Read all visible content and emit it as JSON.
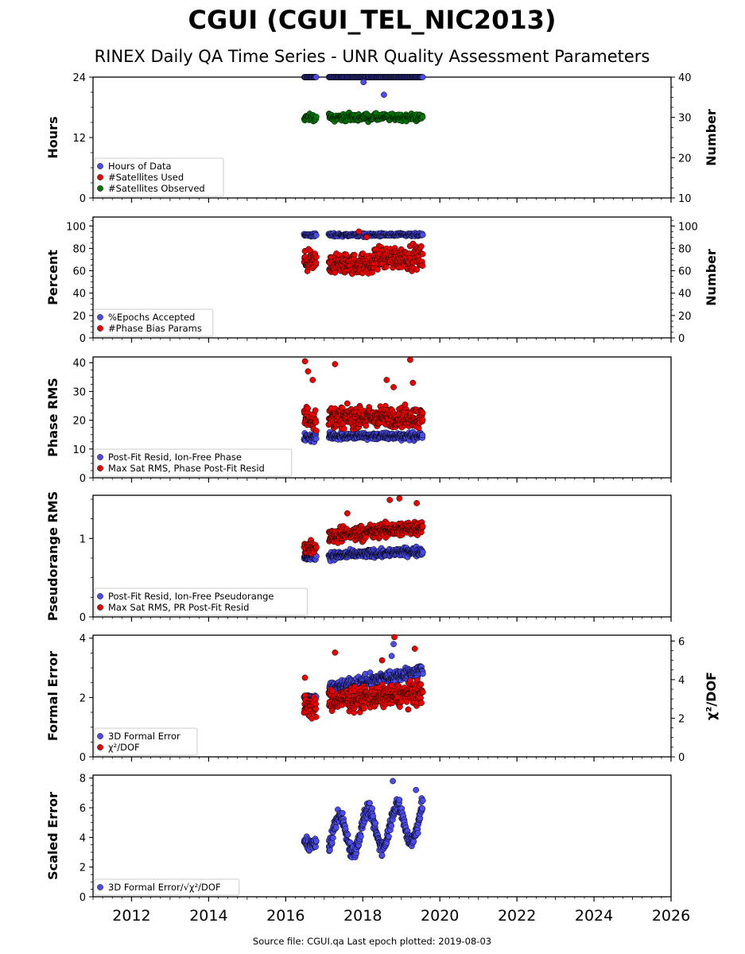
{
  "header": {
    "title": "CGUI (CGUI_TEL_NIC2013)",
    "subtitle": "RINEX Daily QA Time Series - UNR Quality Assessment Parameters"
  },
  "footer": {
    "text": "Source file: CGUI.qa Last epoch plotted: 2019-08-03"
  },
  "colors": {
    "blue": "#4b4bef",
    "red": "#ee0000",
    "green": "#007a00",
    "edge": "#000000"
  },
  "chart_data": [
    {
      "type": "scatter",
      "ylabel": "Hours",
      "ylim": [
        0,
        24
      ],
      "yticks": [
        0,
        12,
        24
      ],
      "right_axis": {
        "label": "Number",
        "ylim": [
          10,
          40
        ],
        "ticks": [
          10,
          20,
          30,
          40
        ]
      },
      "legend": {
        "placement": "lower-left"
      },
      "series": [
        {
          "name": "Hours of Data",
          "color": "blue",
          "axis": "left",
          "segments": [
            {
              "x": [
                2016.48,
                2016.8
              ],
              "base": 24.0,
              "noise": 0.0,
              "step": 0.014
            },
            {
              "x": [
                2017.12,
                2019.56
              ],
              "base": 24.0,
              "noise": 0.0,
              "step": 0.014
            }
          ],
          "outliers": [
            [
              2018.02,
              23.0
            ],
            [
              2018.55,
              20.5
            ]
          ]
        },
        {
          "name": "#Satellites Used",
          "color": "red",
          "axis": "right",
          "segments": []
        },
        {
          "name": "#Satellites Observed",
          "color": "green",
          "axis": "right",
          "segments": [
            {
              "x": [
                2016.48,
                2016.8
              ],
              "base": 30.0,
              "noise": 0.8,
              "step": 0.012
            },
            {
              "x": [
                2017.12,
                2019.56
              ],
              "base": 30.0,
              "noise": 0.9,
              "step": 0.012
            }
          ]
        }
      ]
    },
    {
      "type": "scatter",
      "ylabel": "Percent",
      "ylim": [
        0,
        108
      ],
      "yticks": [
        0,
        20,
        40,
        60,
        80,
        100
      ],
      "right_axis": {
        "label": "Number",
        "ylim": [
          0,
          108
        ],
        "ticks": [
          0,
          20,
          40,
          60,
          80,
          100
        ]
      },
      "legend": {
        "placement": "lower-left"
      },
      "series": [
        {
          "name": "%Epochs Accepted",
          "color": "blue",
          "axis": "left",
          "segments": [
            {
              "x": [
                2016.48,
                2016.8
              ],
              "base": 92,
              "noise": 1.5,
              "step": 0.012
            },
            {
              "x": [
                2017.12,
                2019.56
              ],
              "base": 92,
              "noise": 1.5,
              "step": 0.012
            }
          ]
        },
        {
          "name": "#Phase Bias Params",
          "color": "red",
          "axis": "right",
          "segments": [
            {
              "x": [
                2016.48,
                2016.8
              ],
              "base": 68,
              "noise": 9,
              "step": 0.008
            },
            {
              "x": [
                2017.12,
                2018.3
              ],
              "base": 66,
              "noise": 9,
              "step": 0.008
            },
            {
              "x": [
                2018.3,
                2019.56
              ],
              "base": 72,
              "noise": 10,
              "step": 0.008
            }
          ],
          "outliers": [
            [
              2017.9,
              95
            ],
            [
              2018.1,
              90
            ]
          ]
        }
      ]
    },
    {
      "type": "scatter",
      "ylabel": "Phase RMS",
      "ylim": [
        0,
        42
      ],
      "yticks": [
        0,
        10,
        20,
        30,
        40
      ],
      "legend": {
        "placement": "lower-left"
      },
      "series": [
        {
          "name": "Post-Fit Resid, Ion-Free Phase",
          "color": "blue",
          "axis": "left",
          "segments": [
            {
              "x": [
                2016.48,
                2016.8
              ],
              "base": 14,
              "noise": 1.5,
              "step": 0.008
            },
            {
              "x": [
                2017.12,
                2019.56
              ],
              "base": 14.5,
              "noise": 1.2,
              "step": 0.008
            }
          ]
        },
        {
          "name": "Max Sat RMS, Phase Post-Fit Resid",
          "color": "red",
          "axis": "left",
          "segments": [
            {
              "x": [
                2016.48,
                2016.8
              ],
              "base": 21,
              "noise": 4,
              "step": 0.008
            },
            {
              "x": [
                2017.12,
                2019.56
              ],
              "base": 21,
              "noise": 3.5,
              "step": 0.007
            }
          ],
          "outliers": [
            [
              2016.5,
              40.5
            ],
            [
              2016.58,
              37
            ],
            [
              2016.7,
              34
            ],
            [
              2017.28,
              39.5
            ],
            [
              2018.62,
              34
            ],
            [
              2019.23,
              41
            ],
            [
              2019.3,
              33
            ],
            [
              2018.8,
              31.5
            ]
          ]
        }
      ]
    },
    {
      "type": "scatter",
      "ylabel": "Pseudorange RMS",
      "ylim": [
        0,
        1.55
      ],
      "yticks": [
        0,
        1
      ],
      "legend": {
        "placement": "lower-left"
      },
      "series": [
        {
          "name": "Post-Fit Resid, Ion-Free Pseudorange",
          "color": "blue",
          "axis": "left",
          "segments": [
            {
              "x": [
                2016.48,
                2016.8
              ],
              "base": 0.76,
              "noise": 0.04,
              "step": 0.008
            },
            {
              "x": [
                2017.12,
                2019.56
              ],
              "base": 0.78,
              "noise": 0.05,
              "step": 0.007,
              "trend": 0.06
            }
          ]
        },
        {
          "name": "Max Sat RMS, PR Post-Fit Resid",
          "color": "red",
          "axis": "left",
          "segments": [
            {
              "x": [
                2016.48,
                2016.8
              ],
              "base": 0.88,
              "noise": 0.08,
              "step": 0.008
            },
            {
              "x": [
                2017.12,
                2019.56
              ],
              "base": 1.03,
              "noise": 0.09,
              "step": 0.007,
              "trend": 0.12
            }
          ],
          "outliers": [
            [
              2018.7,
              1.49
            ],
            [
              2018.95,
              1.51
            ],
            [
              2019.4,
              1.45
            ],
            [
              2017.6,
              1.32
            ]
          ]
        }
      ]
    },
    {
      "type": "scatter",
      "ylabel": "Formal Error",
      "ylim": [
        0,
        4.1
      ],
      "yticks": [
        0,
        2,
        4
      ],
      "right_axis": {
        "label": "χ²/DOF",
        "ylim": [
          0,
          6.3
        ],
        "ticks": [
          0,
          2,
          4,
          6
        ]
      },
      "legend": {
        "placement": "lower-left"
      },
      "series": [
        {
          "name": "3D Formal Error",
          "color": "blue",
          "axis": "left",
          "segments": [
            {
              "x": [
                2016.48,
                2016.8
              ],
              "base": 2.0,
              "noise": 0.1,
              "step": 0.008
            },
            {
              "x": [
                2017.12,
                2019.56
              ],
              "base": 2.3,
              "noise": 0.2,
              "step": 0.007,
              "trend": 0.6
            }
          ],
          "outliers": [
            [
              2018.8,
              3.8
            ],
            [
              2018.75,
              3.4
            ]
          ]
        },
        {
          "name": "χ²/DOF",
          "color": "red",
          "axis": "right",
          "segments": [
            {
              "x": [
                2016.48,
                2016.8
              ],
              "base": 2.6,
              "noise": 0.6,
              "step": 0.008
            },
            {
              "x": [
                2017.12,
                2019.56
              ],
              "base": 2.9,
              "noise": 0.55,
              "step": 0.007,
              "trend": 0.4
            }
          ],
          "outliers": [
            [
              2017.28,
              5.4
            ],
            [
              2018.82,
              6.2
            ],
            [
              2019.35,
              5.6
            ],
            [
              2016.5,
              4.1
            ],
            [
              2018.5,
              5.0
            ]
          ]
        }
      ]
    },
    {
      "type": "scatter",
      "ylabel": "Scaled Error",
      "ylim": [
        0,
        8.2
      ],
      "yticks": [
        0,
        2,
        4,
        6,
        8
      ],
      "legend": {
        "placement": "lower-left"
      },
      "series": [
        {
          "name": "3D Formal Error/√χ²/DOF",
          "color": "blue",
          "axis": "left",
          "segments": [
            {
              "x": [
                2016.48,
                2016.8
              ],
              "base": 3.6,
              "noise": 0.4,
              "step": 0.008
            },
            {
              "x": [
                2017.12,
                2019.56
              ],
              "base": 4.0,
              "noise": 0.5,
              "step": 0.007,
              "wave": true
            }
          ],
          "outliers": [
            [
              2018.78,
              7.8
            ],
            [
              2019.38,
              7.2
            ]
          ]
        }
      ]
    }
  ],
  "x_axis": {
    "xlim": [
      2011.0,
      2026.0
    ],
    "ticks": [
      "2012",
      "2014",
      "2016",
      "2018",
      "2020",
      "2022",
      "2024",
      "2026"
    ]
  }
}
